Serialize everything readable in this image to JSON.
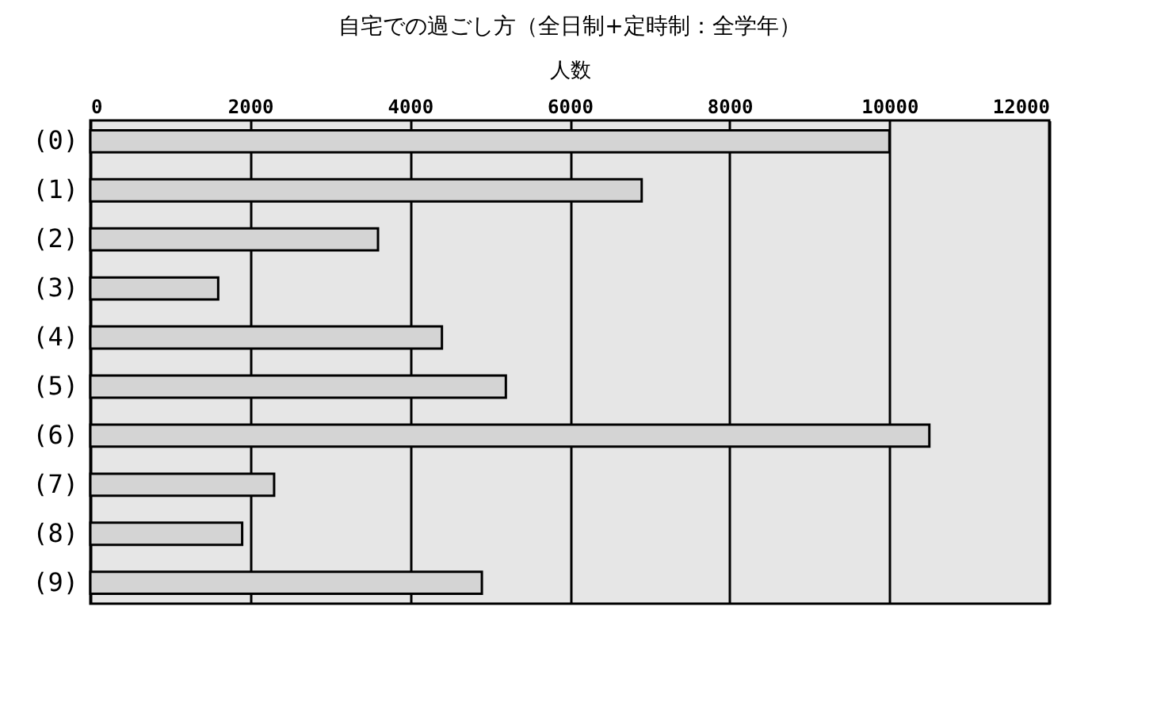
{
  "chart_data": {
    "type": "bar",
    "orientation": "horizontal",
    "title": "自宅での過ごし方（全日制+定時制：全学年）",
    "xlabel": "人数",
    "categories": [
      "(0)",
      "(1)",
      "(2)",
      "(3)",
      "(4)",
      "(5)",
      "(6)",
      "(7)",
      "(8)",
      "(9)"
    ],
    "values": [
      10000,
      6900,
      3600,
      1600,
      4400,
      5200,
      10500,
      2300,
      1900,
      4900
    ],
    "color": "#d4d4d4",
    "xlim": [
      0,
      12000
    ],
    "xticks": [
      0,
      2000,
      4000,
      6000,
      8000,
      10000,
      12000
    ],
    "grid": "x"
  }
}
